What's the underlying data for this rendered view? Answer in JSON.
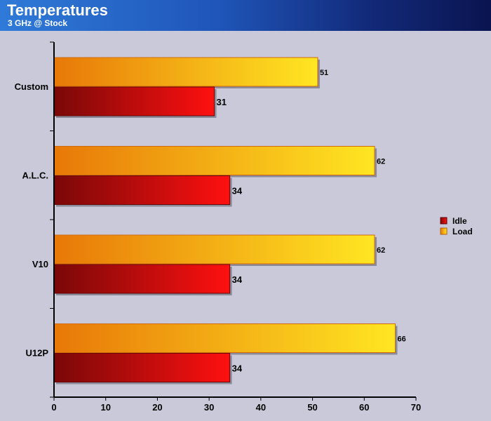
{
  "header": {
    "title": "Temperatures",
    "subtitle": "3 GHz @ Stock"
  },
  "colors": {
    "background": "#c9c9d9",
    "idle": "#e81010",
    "idle_dark": "#7a0808",
    "load": "#ffe020",
    "load_dark": "#e87808"
  },
  "chart_data": {
    "type": "bar",
    "orientation": "horizontal",
    "title": "Temperatures",
    "subtitle": "3 GHz @ Stock",
    "xlabel": "",
    "ylabel": "",
    "categories": [
      "Custom",
      "A.L.C.",
      "V10",
      "U12P"
    ],
    "series": [
      {
        "name": "Idle",
        "values": [
          31,
          34,
          34,
          34
        ]
      },
      {
        "name": "Load",
        "values": [
          51,
          62,
          62,
          66
        ]
      }
    ],
    "xlim": [
      0,
      70
    ],
    "xticks": [
      0,
      10,
      20,
      30,
      40,
      50,
      60,
      70
    ],
    "grid": false,
    "legend": "right"
  }
}
